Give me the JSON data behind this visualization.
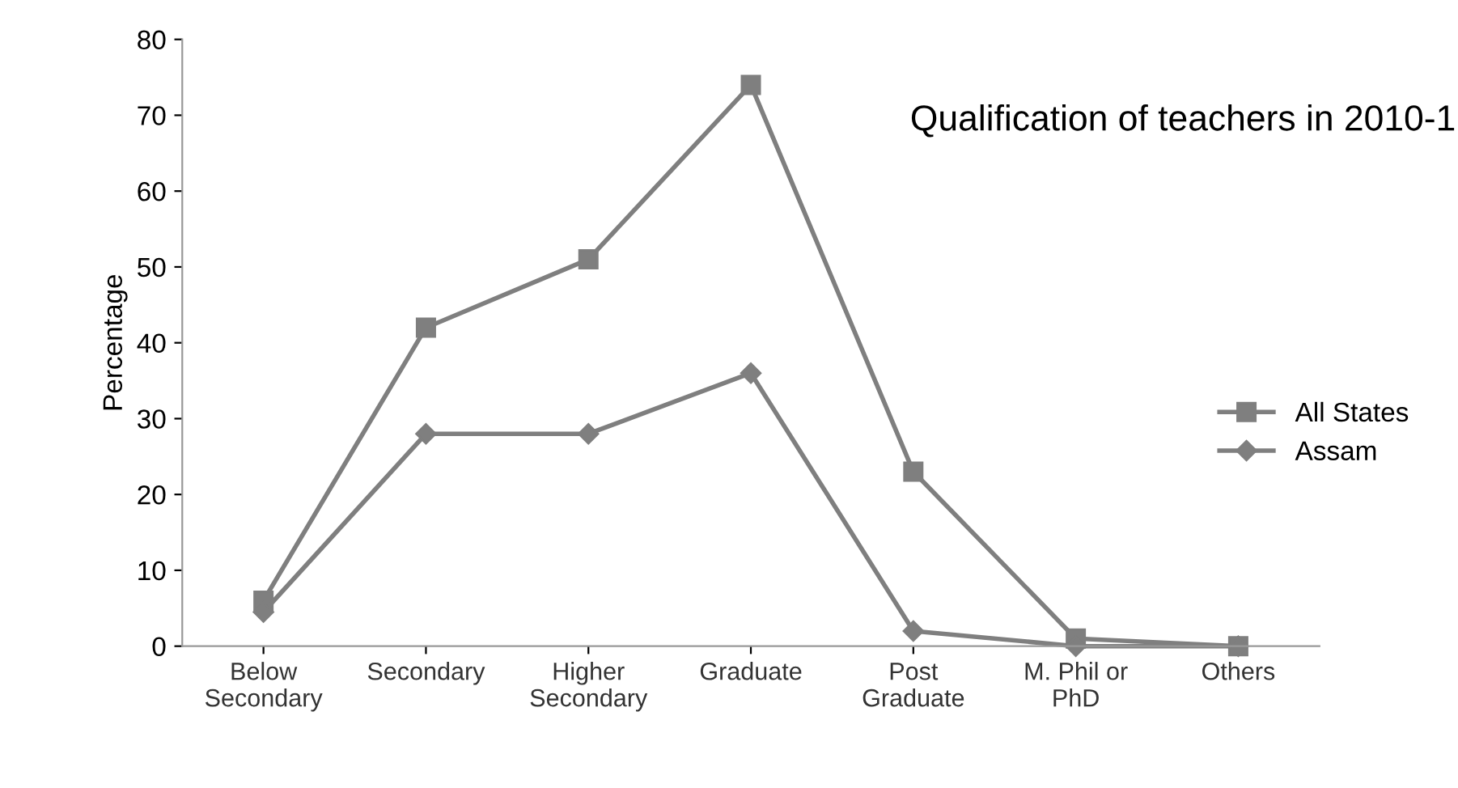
{
  "chart_data": {
    "type": "line",
    "title": "Qualification of teachers in 2010-1",
    "ylabel": "Percentage",
    "categories": [
      "Below\nSecondary",
      "Secondary",
      "Higher\nSecondary",
      "Graduate",
      "Post\nGraduate",
      "M. Phil or\nPhD",
      "Others"
    ],
    "series": [
      {
        "name": "All States",
        "color": "#7f7f7f",
        "marker": "square",
        "values": [
          6,
          42,
          51,
          74,
          23,
          1,
          0
        ]
      },
      {
        "name": "Assam",
        "color": "#7f7f7f",
        "marker": "diamond",
        "values": [
          4.5,
          28,
          28,
          36,
          2,
          0,
          0
        ]
      }
    ],
    "ylim": [
      0,
      80
    ],
    "yticks": [
      0,
      10,
      20,
      30,
      40,
      50,
      60,
      70,
      80
    ],
    "grid": false,
    "legend": "right"
  }
}
